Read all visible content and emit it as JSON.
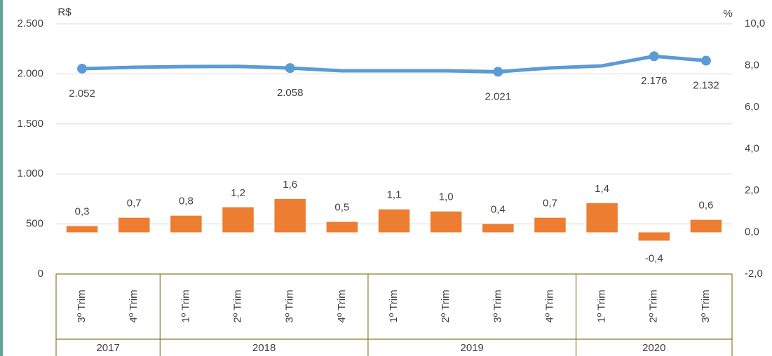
{
  "chart_data": {
    "type": "bar_line",
    "y_unit": "R$",
    "y2_unit": "%",
    "category_groups": [
      {
        "name": "2017",
        "categories": [
          "3º Trim",
          "4º Trim"
        ]
      },
      {
        "name": "2018",
        "categories": [
          "1º Trim",
          "2º Trim",
          "3º Trim",
          "4º Trim"
        ]
      },
      {
        "name": "2019",
        "categories": [
          "1º Trim",
          "2º Trim",
          "3º Trim",
          "4º Trim"
        ]
      },
      {
        "name": "2020",
        "categories": [
          "1º Trim",
          "2º Trim",
          "3º Trim"
        ]
      }
    ],
    "series": [
      {
        "type": "bar",
        "axis": "y2",
        "color": "#ed7d31",
        "values": [
          0.3,
          0.7,
          0.8,
          1.2,
          1.6,
          0.5,
          1.1,
          1.0,
          0.4,
          0.7,
          1.4,
          -0.4,
          0.6
        ],
        "value_labels": [
          "0,3",
          "0,7",
          "0,8",
          "1,2",
          "1,6",
          "0,5",
          "1,1",
          "1,0",
          "0,4",
          "0,7",
          "1,4",
          "-0,4",
          "0,6"
        ]
      },
      {
        "type": "line",
        "axis": "y",
        "color": "#5b9bd5",
        "values": [
          2052,
          2066,
          2073,
          2075,
          2058,
          2031,
          2031,
          2031,
          2021,
          2059,
          2080,
          2176,
          2132
        ],
        "value_labels": [
          "2.052",
          null,
          null,
          null,
          "2.058",
          null,
          null,
          null,
          "2.021",
          null,
          null,
          "2.176",
          "2.132"
        ]
      }
    ],
    "ylim": [
      0,
      2500
    ],
    "yticks": [
      0,
      500,
      {
        "value": 1000,
        "label": "1.000"
      },
      {
        "value": 1500,
        "label": "1.500"
      },
      {
        "value": 2000,
        "label": "2.000"
      },
      {
        "value": 2500,
        "label": "2.500"
      }
    ],
    "y2lim": [
      -2,
      10
    ],
    "y2ticks": [
      {
        "value": -2,
        "label": "-2,0"
      },
      {
        "value": 0,
        "label": "0,0"
      },
      {
        "value": 2,
        "label": "2,0"
      },
      {
        "value": 4,
        "label": "4,0"
      },
      {
        "value": 6,
        "label": "6,0"
      },
      {
        "value": 8,
        "label": "8,0"
      },
      {
        "value": 10,
        "label": "10,0"
      }
    ],
    "grid": true
  }
}
